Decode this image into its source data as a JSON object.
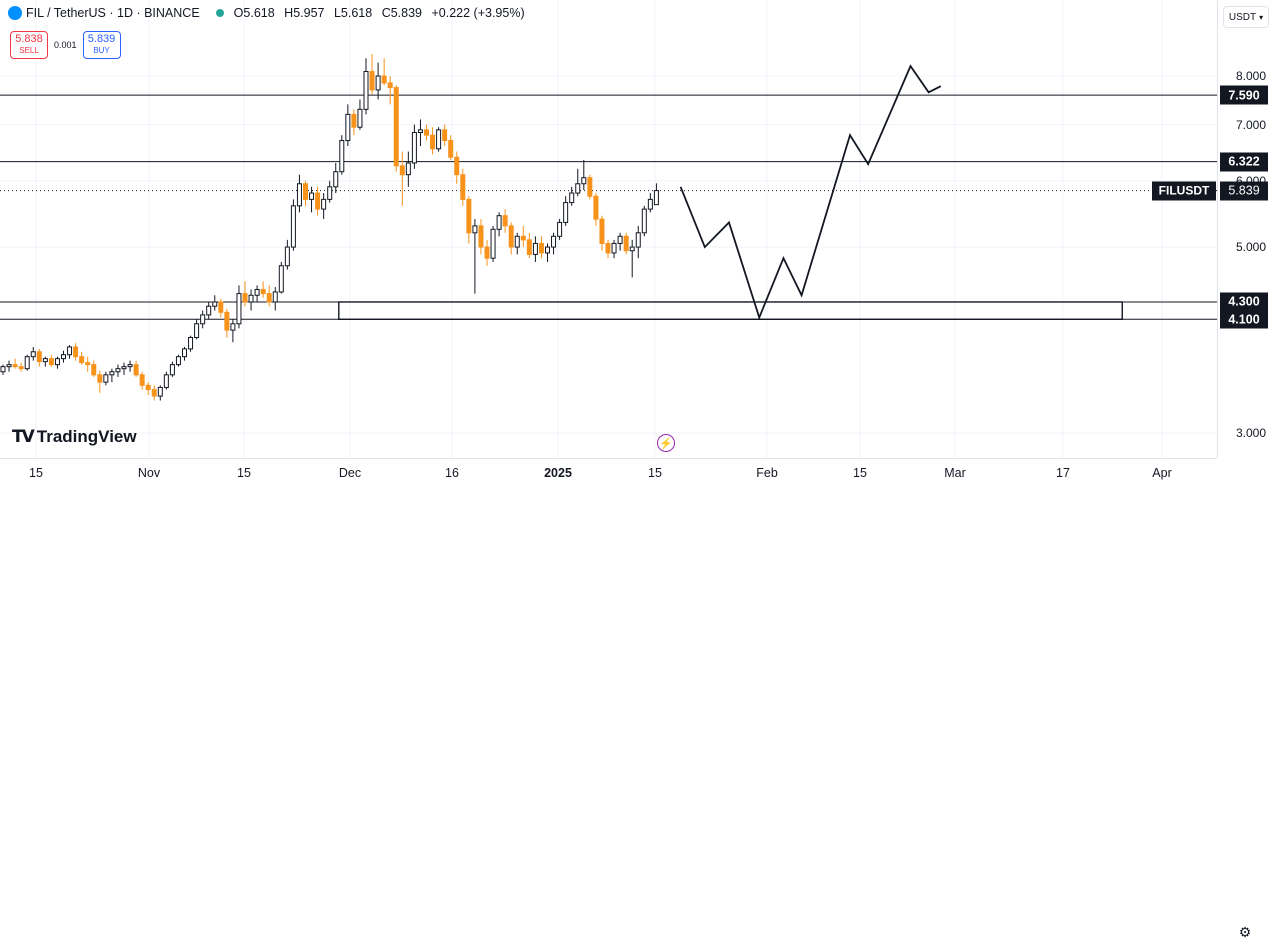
{
  "header": {
    "symbol": "FIL / TetherUS · 1D · BINANCE",
    "open": "O5.618",
    "high": "H5.957",
    "low": "L5.618",
    "close": "C5.839",
    "change": "+0.222 (+3.95%)"
  },
  "trade": {
    "sell_price": "5.838",
    "sell_label": "SELL",
    "spread": "0.001",
    "buy_price": "5.839",
    "buy_label": "BUY"
  },
  "currency": "USDT",
  "watermark": "TradingView",
  "colors": {
    "up": "#131722",
    "down": "#f7931a",
    "line": "#131722"
  },
  "chart_data": {
    "type": "candlestick",
    "log_scale": true,
    "yaxis": {
      "ticks": [
        3.0,
        5.0,
        6.0,
        7.0,
        8.0
      ],
      "tick_labels": [
        "3.000",
        "5.000",
        "6.000",
        "7.000",
        "8.000"
      ]
    },
    "xaxis": {
      "labels": [
        "15",
        "Nov",
        "15",
        "Dec",
        "16",
        "2025",
        "15",
        "Feb",
        "15",
        "Mar",
        "17",
        "Apr"
      ]
    },
    "horizontal_levels": [
      {
        "price": 7.59,
        "label": "7.590"
      },
      {
        "price": 6.322,
        "label": "6.322"
      },
      {
        "price": 4.3,
        "label": "4.300"
      },
      {
        "price": 4.1,
        "label": "4.100"
      }
    ],
    "last_price": {
      "price": 5.839,
      "symbol": "FILUSDT",
      "label": "5.839"
    },
    "support_zone": {
      "top": 4.3,
      "bottom": 4.1,
      "start_index": 56,
      "end_bar": 185
    },
    "candles": [
      [
        3.55,
        3.62,
        3.52,
        3.6
      ],
      [
        3.6,
        3.66,
        3.55,
        3.62
      ],
      [
        3.62,
        3.68,
        3.58,
        3.6
      ],
      [
        3.6,
        3.64,
        3.55,
        3.58
      ],
      [
        3.58,
        3.72,
        3.56,
        3.7
      ],
      [
        3.7,
        3.8,
        3.66,
        3.75
      ],
      [
        3.75,
        3.78,
        3.6,
        3.65
      ],
      [
        3.65,
        3.7,
        3.6,
        3.68
      ],
      [
        3.68,
        3.72,
        3.6,
        3.62
      ],
      [
        3.62,
        3.7,
        3.58,
        3.68
      ],
      [
        3.68,
        3.76,
        3.64,
        3.72
      ],
      [
        3.72,
        3.82,
        3.68,
        3.8
      ],
      [
        3.8,
        3.84,
        3.66,
        3.7
      ],
      [
        3.7,
        3.75,
        3.62,
        3.64
      ],
      [
        3.64,
        3.7,
        3.55,
        3.62
      ],
      [
        3.62,
        3.66,
        3.5,
        3.52
      ],
      [
        3.52,
        3.56,
        3.35,
        3.45
      ],
      [
        3.45,
        3.55,
        3.42,
        3.52
      ],
      [
        3.52,
        3.58,
        3.45,
        3.55
      ],
      [
        3.55,
        3.62,
        3.5,
        3.58
      ],
      [
        3.58,
        3.64,
        3.52,
        3.6
      ],
      [
        3.6,
        3.66,
        3.55,
        3.62
      ],
      [
        3.62,
        3.66,
        3.5,
        3.52
      ],
      [
        3.52,
        3.55,
        3.38,
        3.42
      ],
      [
        3.42,
        3.45,
        3.33,
        3.38
      ],
      [
        3.38,
        3.42,
        3.28,
        3.32
      ],
      [
        3.32,
        3.42,
        3.28,
        3.4
      ],
      [
        3.4,
        3.55,
        3.38,
        3.52
      ],
      [
        3.52,
        3.65,
        3.5,
        3.62
      ],
      [
        3.62,
        3.72,
        3.6,
        3.7
      ],
      [
        3.7,
        3.8,
        3.66,
        3.78
      ],
      [
        3.78,
        3.92,
        3.75,
        3.9
      ],
      [
        3.9,
        4.1,
        3.88,
        4.05
      ],
      [
        4.05,
        4.2,
        4.0,
        4.15
      ],
      [
        4.15,
        4.3,
        4.1,
        4.25
      ],
      [
        4.25,
        4.38,
        4.2,
        4.3
      ],
      [
        4.3,
        4.34,
        4.12,
        4.18
      ],
      [
        4.18,
        4.22,
        3.9,
        3.98
      ],
      [
        3.98,
        4.1,
        3.85,
        4.05
      ],
      [
        4.05,
        4.5,
        4.0,
        4.4
      ],
      [
        4.4,
        4.55,
        4.25,
        4.3
      ],
      [
        4.3,
        4.45,
        4.2,
        4.38
      ],
      [
        4.38,
        4.5,
        4.3,
        4.45
      ],
      [
        4.45,
        4.55,
        4.35,
        4.4
      ],
      [
        4.4,
        4.5,
        4.25,
        4.3
      ],
      [
        4.3,
        4.48,
        4.2,
        4.42
      ],
      [
        4.42,
        4.8,
        4.4,
        4.75
      ],
      [
        4.75,
        5.1,
        4.7,
        5.0
      ],
      [
        5.0,
        5.7,
        4.95,
        5.6
      ],
      [
        5.6,
        6.1,
        5.5,
        5.95
      ],
      [
        5.95,
        6.0,
        5.6,
        5.7
      ],
      [
        5.7,
        5.9,
        5.5,
        5.8
      ],
      [
        5.8,
        5.9,
        5.45,
        5.55
      ],
      [
        5.55,
        5.8,
        5.4,
        5.7
      ],
      [
        5.7,
        6.0,
        5.65,
        5.9
      ],
      [
        5.9,
        6.3,
        5.8,
        6.15
      ],
      [
        6.15,
        6.8,
        6.1,
        6.7
      ],
      [
        6.7,
        7.4,
        6.6,
        7.2
      ],
      [
        7.2,
        7.3,
        6.8,
        6.95
      ],
      [
        6.95,
        7.5,
        6.9,
        7.3
      ],
      [
        7.3,
        8.4,
        7.2,
        8.1
      ],
      [
        8.1,
        8.5,
        7.6,
        7.7
      ],
      [
        7.7,
        8.3,
        7.5,
        8.0
      ],
      [
        8.0,
        8.4,
        7.8,
        7.85
      ],
      [
        7.85,
        8.0,
        7.4,
        7.75
      ],
      [
        7.75,
        7.8,
        6.15,
        6.25
      ],
      [
        6.25,
        6.5,
        5.6,
        6.1
      ],
      [
        6.1,
        6.5,
        5.9,
        6.3
      ],
      [
        6.3,
        7.0,
        6.2,
        6.85
      ],
      [
        6.85,
        7.1,
        6.6,
        6.9
      ],
      [
        6.9,
        7.0,
        6.7,
        6.8
      ],
      [
        6.8,
        6.95,
        6.45,
        6.55
      ],
      [
        6.55,
        6.95,
        6.5,
        6.9
      ],
      [
        6.9,
        7.0,
        6.6,
        6.7
      ],
      [
        6.7,
        6.8,
        6.35,
        6.4
      ],
      [
        6.4,
        6.5,
        5.95,
        6.1
      ],
      [
        6.1,
        6.2,
        5.6,
        5.7
      ],
      [
        5.7,
        5.75,
        5.05,
        5.2
      ],
      [
        5.2,
        5.4,
        4.4,
        5.3
      ],
      [
        5.3,
        5.4,
        4.9,
        5.0
      ],
      [
        5.0,
        5.1,
        4.75,
        4.85
      ],
      [
        4.85,
        5.3,
        4.8,
        5.25
      ],
      [
        5.25,
        5.5,
        5.15,
        5.45
      ],
      [
        5.45,
        5.55,
        5.2,
        5.3
      ],
      [
        5.3,
        5.35,
        4.9,
        5.0
      ],
      [
        5.0,
        5.2,
        4.9,
        5.15
      ],
      [
        5.15,
        5.3,
        5.0,
        5.1
      ],
      [
        5.1,
        5.2,
        4.85,
        4.9
      ],
      [
        4.9,
        5.15,
        4.8,
        5.05
      ],
      [
        5.05,
        5.15,
        4.85,
        4.92
      ],
      [
        4.92,
        5.05,
        4.8,
        5.0
      ],
      [
        5.0,
        5.2,
        4.9,
        5.15
      ],
      [
        5.15,
        5.4,
        5.1,
        5.35
      ],
      [
        5.35,
        5.75,
        5.3,
        5.65
      ],
      [
        5.65,
        5.9,
        5.6,
        5.8
      ],
      [
        5.8,
        6.2,
        5.75,
        5.95
      ],
      [
        5.95,
        6.35,
        5.85,
        6.05
      ],
      [
        6.05,
        6.1,
        5.7,
        5.75
      ],
      [
        5.75,
        5.8,
        5.3,
        5.4
      ],
      [
        5.4,
        5.45,
        4.95,
        5.05
      ],
      [
        5.05,
        5.1,
        4.85,
        4.92
      ],
      [
        4.92,
        5.1,
        4.85,
        5.05
      ],
      [
        5.05,
        5.2,
        4.95,
        5.15
      ],
      [
        5.15,
        5.2,
        4.9,
        4.95
      ],
      [
        4.95,
        5.1,
        4.6,
        5.0
      ],
      [
        5.0,
        5.3,
        4.85,
        5.2
      ],
      [
        5.2,
        5.6,
        5.15,
        5.55
      ],
      [
        5.55,
        5.8,
        5.5,
        5.7
      ],
      [
        5.618,
        5.957,
        5.618,
        5.839
      ]
    ],
    "projection_path": [
      {
        "bar": 112,
        "price": 5.9
      },
      {
        "bar": 116,
        "price": 5.0
      },
      {
        "bar": 120,
        "price": 5.35
      },
      {
        "bar": 125,
        "price": 4.12
      },
      {
        "bar": 129,
        "price": 4.85
      },
      {
        "bar": 132,
        "price": 4.38
      },
      {
        "bar": 140,
        "price": 6.8
      },
      {
        "bar": 143,
        "price": 6.28
      },
      {
        "bar": 150,
        "price": 8.22
      },
      {
        "bar": 153,
        "price": 7.65
      },
      {
        "bar": 155,
        "price": 7.78
      }
    ]
  }
}
